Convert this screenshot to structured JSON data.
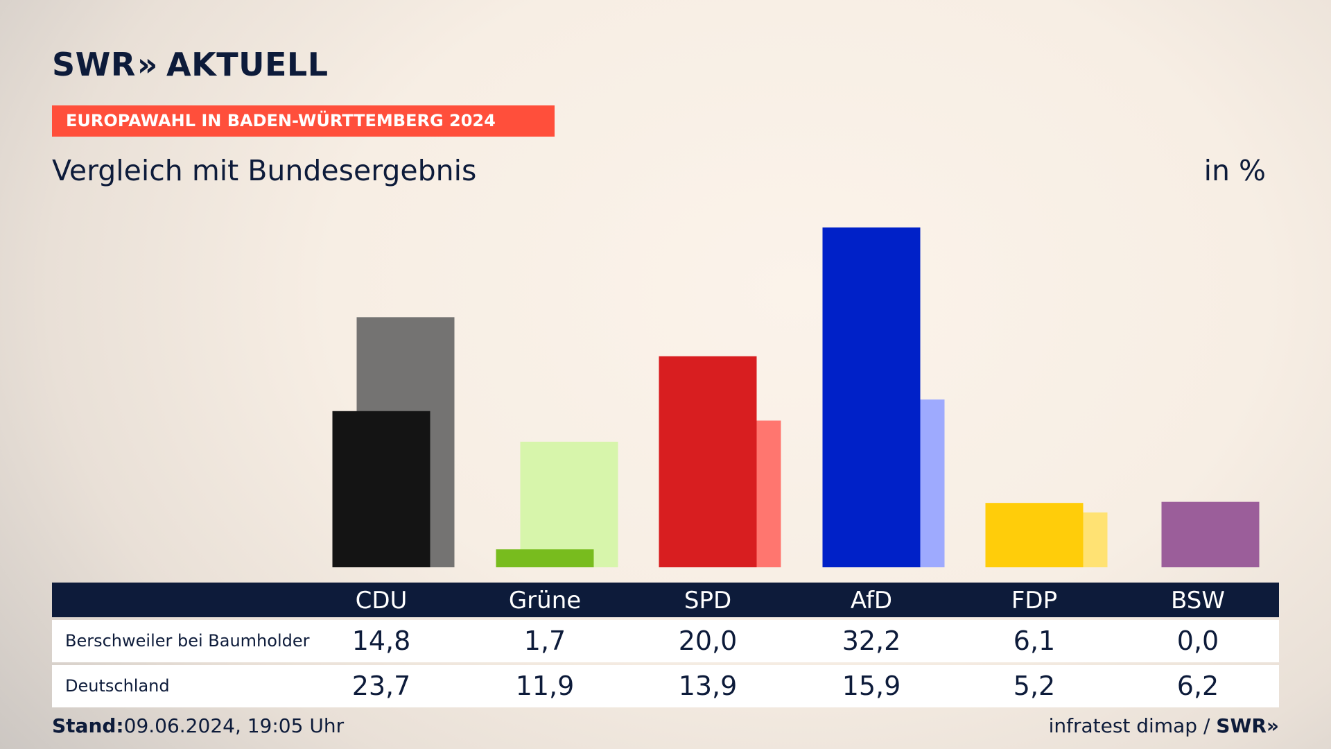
{
  "brand": {
    "logo_text": "SWR",
    "logo_chevrons": "»",
    "logo_suffix": "AKTUELL"
  },
  "banner": {
    "text": "EUROPAWAHL IN BADEN-WÜRTTEMBERG 2024"
  },
  "subtitle": "Vergleich mit Bundesergebnis",
  "unit": "in %",
  "table": {
    "columns": [
      "CDU",
      "Grüne",
      "SPD",
      "AfD",
      "FDP",
      "BSW"
    ],
    "rows": [
      {
        "label": "Berschweiler bei Baumholder",
        "values": [
          "14,8",
          "1,7",
          "20,0",
          "32,2",
          "6,1",
          "0,0"
        ]
      },
      {
        "label": "Deutschland",
        "values": [
          "23,7",
          "11,9",
          "13,9",
          "15,9",
          "5,2",
          "6,2"
        ]
      }
    ]
  },
  "footer": {
    "stand_label": "Stand:",
    "stand_value": "09.06.2024, 19:05 Uhr",
    "source": "infratest dimap /",
    "source_brand": "SWR»"
  },
  "chart_data": {
    "type": "bar",
    "categories": [
      "CDU",
      "Grüne",
      "SPD",
      "AfD",
      "FDP",
      "BSW"
    ],
    "series": [
      {
        "name": "Berschweiler bei Baumholder",
        "values": [
          14.8,
          1.7,
          20.0,
          32.2,
          6.1,
          0.0
        ],
        "colors": [
          "#141414",
          "#78bc1e",
          "#d81e20",
          "#0021c8",
          "#ffcd0a",
          "#9b5e9a"
        ]
      },
      {
        "name": "Deutschland",
        "values": [
          23.7,
          11.9,
          13.9,
          15.9,
          5.2,
          6.2
        ],
        "colors": [
          "#747372",
          "#d7f5ab",
          "#ff766f",
          "#9eaafe",
          "#ffe273",
          "#9b5e9a"
        ]
      }
    ],
    "ylim": [
      0,
      32.2
    ]
  }
}
